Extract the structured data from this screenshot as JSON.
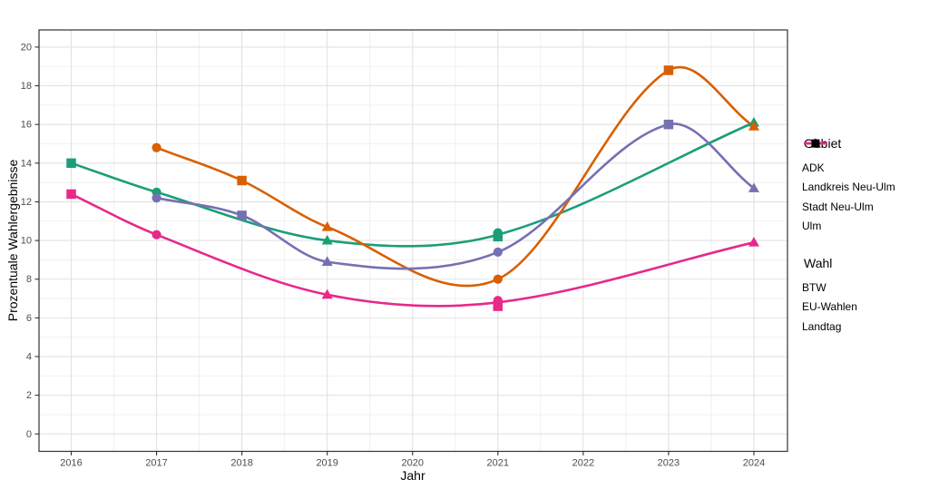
{
  "page": {
    "background": "#ffffff"
  },
  "theme": {
    "grid_major_color": "#E2E2E2",
    "grid_minor_color": "#EDEDED",
    "panel_border_color": "#333333",
    "tick_color": "#333333",
    "tick_label_color": "#4D4D4D",
    "axis_title_color": "#000000"
  },
  "chart_data": {
    "type": "line",
    "title": "",
    "xlabel": "Jahr",
    "ylabel": "Prozentuale Wahlergebnisse",
    "x_ticks": [
      2016,
      2017,
      2018,
      2019,
      2020,
      2021,
      2022,
      2023,
      2024
    ],
    "y_ticks": [
      0,
      2,
      4,
      6,
      8,
      10,
      12,
      14,
      16,
      18,
      20
    ],
    "xlim": [
      2015.6,
      2024.4
    ],
    "ylim": [
      -0.9,
      20.9
    ],
    "grid": "major+minor",
    "legend_position": "right",
    "color_legend_title": "Gebiet",
    "shape_legend_title": "Wahl",
    "shape_legend": [
      {
        "label": "BTW",
        "shape": "circle"
      },
      {
        "label": "EU-Wahlen",
        "shape": "triangle"
      },
      {
        "label": "Landtag",
        "shape": "square"
      }
    ],
    "series": [
      {
        "name": "ADK",
        "color": "#1B9E77",
        "points": [
          {
            "x": 2016,
            "y": 14.0,
            "wahl": "Landtag",
            "shape": "square"
          },
          {
            "x": 2017,
            "y": 12.5,
            "wahl": "BTW",
            "shape": "circle"
          },
          {
            "x": 2019,
            "y": 10.0,
            "wahl": "EU-Wahlen",
            "shape": "triangle"
          },
          {
            "x": 2021,
            "y": 10.4,
            "wahl": "BTW",
            "shape": "circle"
          },
          {
            "x": 2021,
            "y": 10.2,
            "wahl": "Landtag",
            "shape": "square"
          },
          {
            "x": 2024,
            "y": 16.1,
            "wahl": "EU-Wahlen",
            "shape": "triangle"
          }
        ],
        "line": [
          [
            2016,
            14.0
          ],
          [
            2017,
            12.5
          ],
          [
            2019,
            10.0
          ],
          [
            2021,
            10.3
          ],
          [
            2024,
            16.1
          ]
        ]
      },
      {
        "name": "Landkreis Neu-Ulm",
        "color": "#D95F02",
        "points": [
          {
            "x": 2017,
            "y": 14.8,
            "wahl": "BTW",
            "shape": "circle"
          },
          {
            "x": 2018,
            "y": 13.1,
            "wahl": "Landtag",
            "shape": "square"
          },
          {
            "x": 2019,
            "y": 10.7,
            "wahl": "EU-Wahlen",
            "shape": "triangle"
          },
          {
            "x": 2021,
            "y": 8.0,
            "wahl": "BTW",
            "shape": "circle"
          },
          {
            "x": 2023,
            "y": 18.8,
            "wahl": "Landtag",
            "shape": "square"
          },
          {
            "x": 2024,
            "y": 15.9,
            "wahl": "EU-Wahlen",
            "shape": "triangle"
          }
        ],
        "line": [
          [
            2017,
            14.8
          ],
          [
            2018,
            13.1
          ],
          [
            2019,
            10.7
          ],
          [
            2021,
            8.0
          ],
          [
            2023,
            18.8
          ],
          [
            2024,
            15.9
          ]
        ]
      },
      {
        "name": "Stadt Neu-Ulm",
        "color": "#7570B3",
        "points": [
          {
            "x": 2017,
            "y": 12.2,
            "wahl": "BTW",
            "shape": "circle"
          },
          {
            "x": 2018,
            "y": 11.3,
            "wahl": "Landtag",
            "shape": "square"
          },
          {
            "x": 2019,
            "y": 8.9,
            "wahl": "EU-Wahlen",
            "shape": "triangle"
          },
          {
            "x": 2021,
            "y": 9.4,
            "wahl": "BTW",
            "shape": "circle"
          },
          {
            "x": 2023,
            "y": 16.0,
            "wahl": "Landtag",
            "shape": "square"
          },
          {
            "x": 2024,
            "y": 12.7,
            "wahl": "EU-Wahlen",
            "shape": "triangle"
          }
        ],
        "line": [
          [
            2017,
            12.2
          ],
          [
            2018,
            11.3
          ],
          [
            2019,
            8.9
          ],
          [
            2021,
            9.4
          ],
          [
            2023,
            16.0
          ],
          [
            2024,
            12.7
          ]
        ]
      },
      {
        "name": "Ulm",
        "color": "#E7298A",
        "points": [
          {
            "x": 2016,
            "y": 12.4,
            "wahl": "Landtag",
            "shape": "square"
          },
          {
            "x": 2017,
            "y": 10.3,
            "wahl": "BTW",
            "shape": "circle"
          },
          {
            "x": 2019,
            "y": 7.2,
            "wahl": "EU-Wahlen",
            "shape": "triangle"
          },
          {
            "x": 2021,
            "y": 6.9,
            "wahl": "BTW",
            "shape": "circle"
          },
          {
            "x": 2021,
            "y": 6.6,
            "wahl": "Landtag",
            "shape": "square"
          },
          {
            "x": 2024,
            "y": 9.9,
            "wahl": "EU-Wahlen",
            "shape": "triangle"
          }
        ],
        "line": [
          [
            2016,
            12.4
          ],
          [
            2017,
            10.3
          ],
          [
            2019,
            7.2
          ],
          [
            2021,
            6.8
          ],
          [
            2024,
            9.9
          ]
        ]
      }
    ]
  }
}
